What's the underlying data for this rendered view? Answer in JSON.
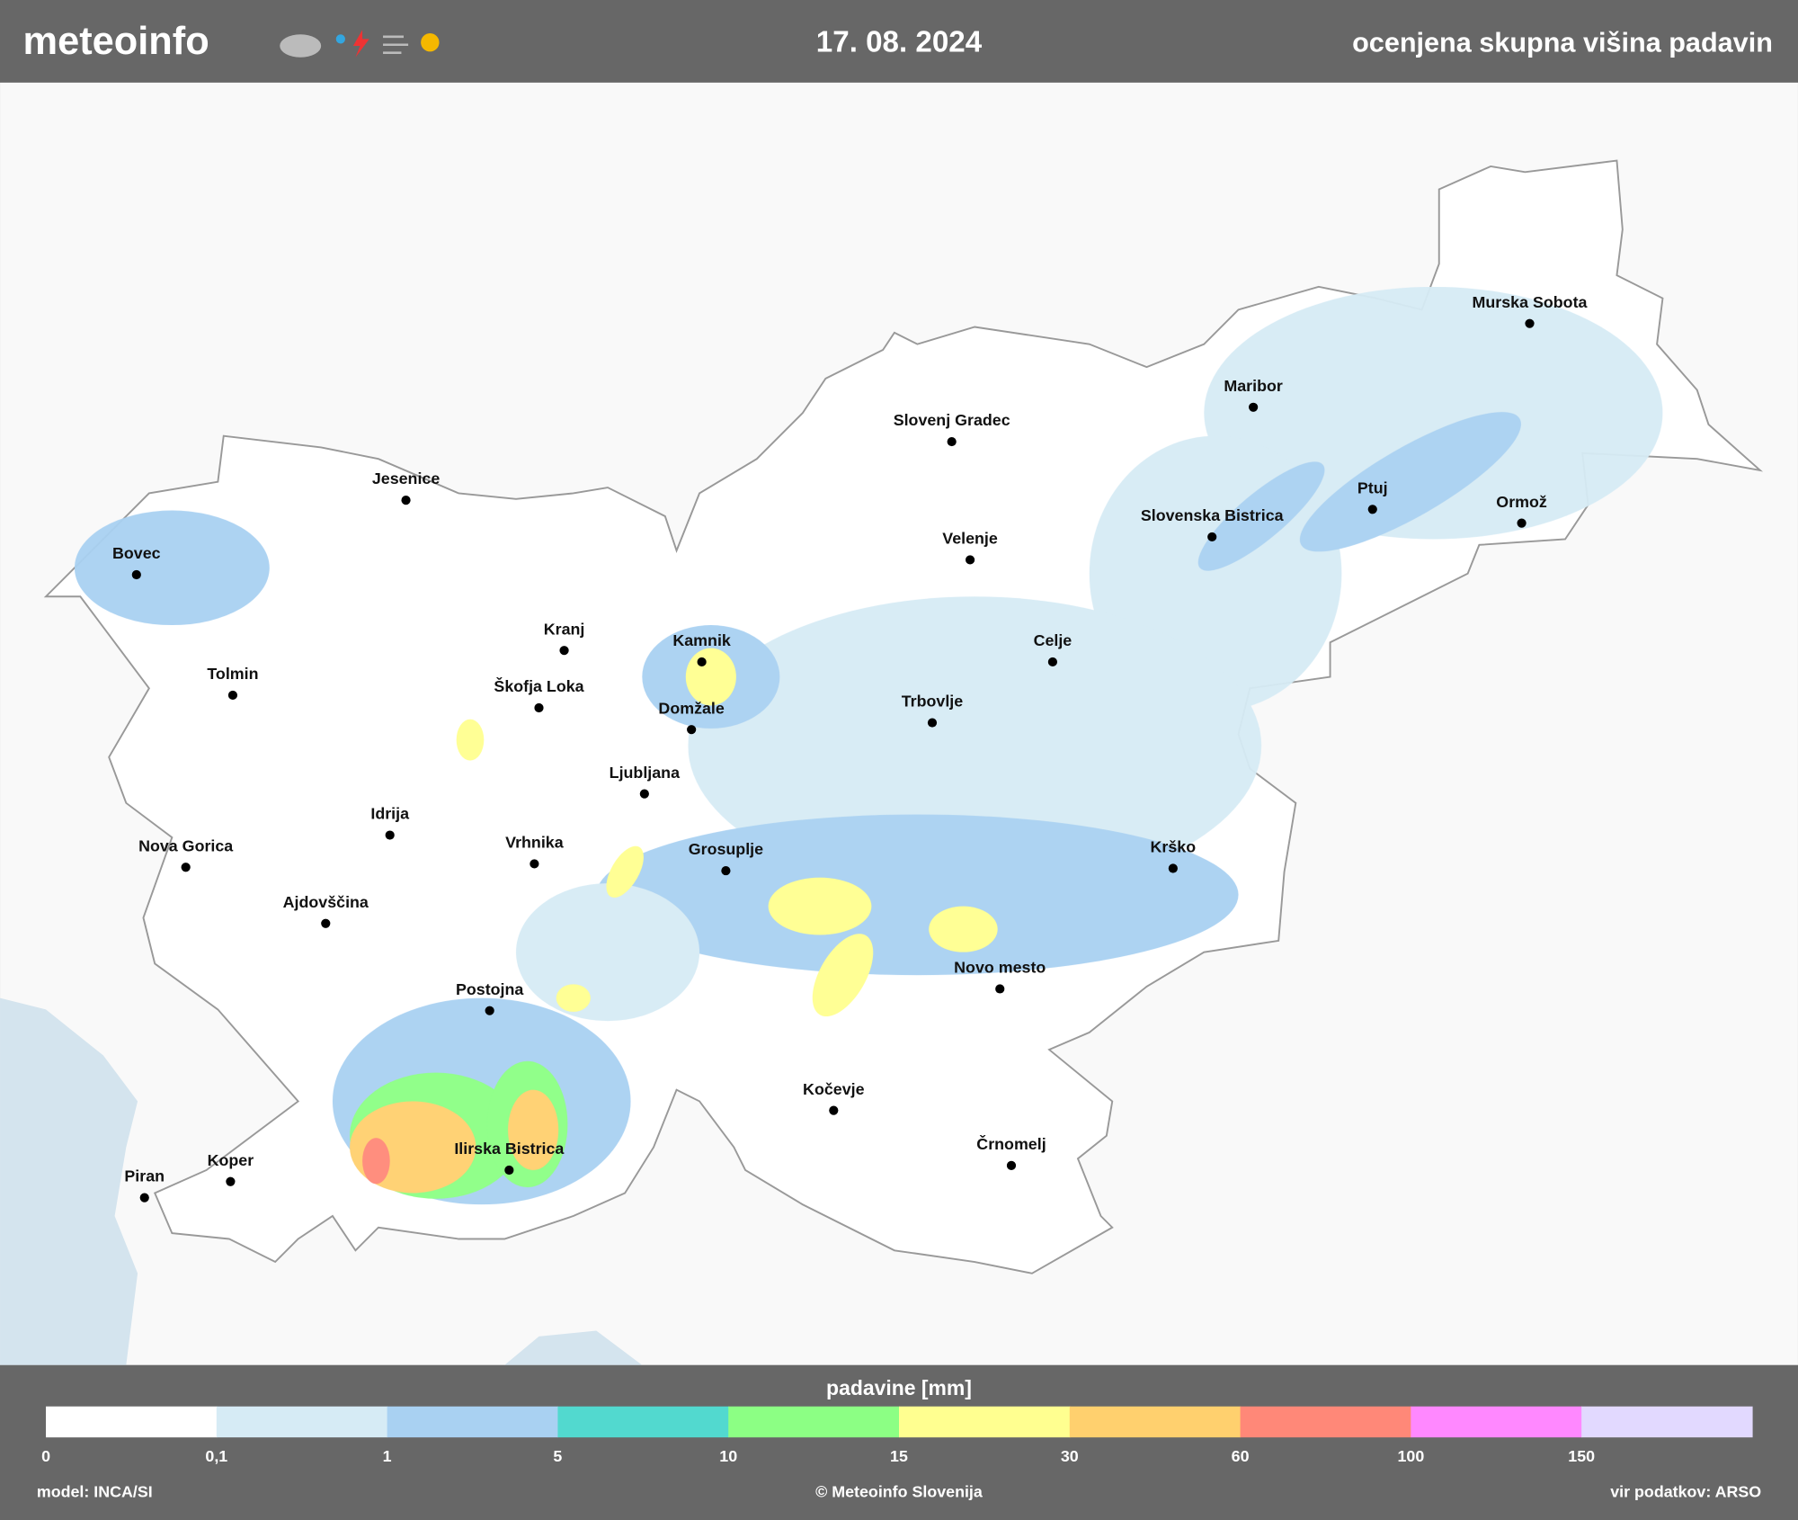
{
  "header": {
    "logo": "meteoinfo",
    "date": "17. 08. 2024",
    "title": "ocenjena skupna višina padavin"
  },
  "map": {
    "cities": [
      "Murska Sobota",
      "Maribor",
      "Slovenj Gradec",
      "Ptuj",
      "Ormož",
      "Slovenska Bistrica",
      "Velenje",
      "Jesenice",
      "Bovec",
      "Kranj",
      "Kamnik",
      "Celje",
      "Tolmin",
      "Škofja Loka",
      "Domžale",
      "Trbovlje",
      "Ljubljana",
      "Idrija",
      "Nova Gorica",
      "Vrhnika",
      "Grosuplje",
      "Krško",
      "Ajdovščina",
      "Novo mesto",
      "Postojna",
      "Kočevje",
      "Črnomelj",
      "Ilirska Bistrica",
      "Koper",
      "Piran"
    ]
  },
  "legend": {
    "title": "padavine [mm]",
    "ticks": [
      "0",
      "0,1",
      "1",
      "5",
      "10",
      "15",
      "30",
      "60",
      "100",
      "150"
    ],
    "colors": [
      "#ffffff",
      "#d6ebf5",
      "#a9d1f2",
      "#52d9cf",
      "#8cff84",
      "#ffff90",
      "#ffd06e",
      "#ff8878",
      "#ff88ff",
      "#e2d9ff"
    ]
  },
  "footer": {
    "left": "model: INCA/SI",
    "center": "© Meteoinfo Slovenija",
    "right": "vir podatkov: ARSO"
  }
}
